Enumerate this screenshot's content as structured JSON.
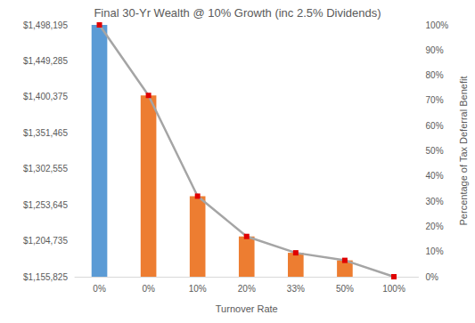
{
  "chart_data": {
    "type": "bar",
    "title": "Final 30-Yr Wealth @ 10% Growth (inc 2.5% Dividends)",
    "xlabel": "Turnover Rate",
    "y2label": "Percentage of Tax Deferral Benefit",
    "categories": [
      "0%",
      "0%",
      "10%",
      "20%",
      "33%",
      "50%",
      "100%"
    ],
    "series": [
      {
        "type": "bar",
        "colors": [
          "#5b9bd5",
          "#ed7d31",
          "#ed7d31",
          "#ed7d31",
          "#ed7d31",
          "#ed7d31",
          "#ed7d31"
        ],
        "values": [
          1498195,
          1402300,
          1265400,
          1210600,
          1188400,
          1178100,
          1155825
        ]
      },
      {
        "type": "line",
        "axis": "y2",
        "color": "#a5a5a5",
        "marker": "square",
        "colors": [
          "#e00000",
          "#e00000",
          "#e00000",
          "#e00000",
          "#e00000",
          "#e00000",
          "#e00000"
        ],
        "values": [
          100,
          72,
          32,
          16,
          9.5,
          6.5,
          0
        ]
      }
    ],
    "ylim": [
      1155825,
      1498195
    ],
    "yticks": [
      {
        "value": 1155825,
        "label": "$1,155,825"
      },
      {
        "value": 1204735,
        "label": "$1,204,735"
      },
      {
        "value": 1253645,
        "label": "$1,253,645"
      },
      {
        "value": 1302555,
        "label": "$1,302,555"
      },
      {
        "value": 1351465,
        "label": "$1,351,465"
      },
      {
        "value": 1400375,
        "label": "$1,400,375"
      },
      {
        "value": 1449285,
        "label": "$1,449,285"
      },
      {
        "value": 1498195,
        "label": "$1,498,195"
      }
    ],
    "y2lim": [
      0,
      100
    ],
    "y2ticks": [
      {
        "value": 0,
        "label": "0%"
      },
      {
        "value": 10,
        "label": "10%"
      },
      {
        "value": 20,
        "label": "20%"
      },
      {
        "value": 30,
        "label": "30%"
      },
      {
        "value": 40,
        "label": "40%"
      },
      {
        "value": 50,
        "label": "50%"
      },
      {
        "value": 60,
        "label": "60%"
      },
      {
        "value": 70,
        "label": "70%"
      },
      {
        "value": 80,
        "label": "80%"
      },
      {
        "value": 90,
        "label": "90%"
      },
      {
        "value": 100,
        "label": "100%"
      }
    ],
    "grid": false
  }
}
